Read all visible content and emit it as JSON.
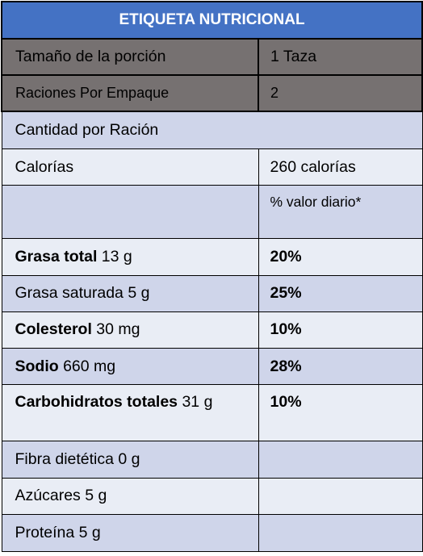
{
  "title": "ETIQUETA  NUTRICIONAL",
  "serving_size": {
    "label": "Tamaño de la porción",
    "value": "1 Taza"
  },
  "servings_per_container": {
    "label": "Raciones Por Empaque",
    "value": "2"
  },
  "amount_per_serving": "Cantidad por Ración",
  "calories": {
    "label": "Calorías",
    "value": "260 calorías"
  },
  "daily_value_header": "% valor diario*",
  "nutrients": [
    {
      "name": "Grasa total",
      "amount": " 13 g",
      "dv": "20%"
    },
    {
      "name": "Grasa saturada 5 g",
      "amount": "",
      "dv": "25%"
    },
    {
      "name": "Colesterol",
      "amount": " 30 mg",
      "dv": "10%"
    },
    {
      "name": "Sodio",
      "amount": " 660 mg",
      "dv": "28%"
    },
    {
      "name": "Carbohidratos  totales",
      "amount": " 31 g",
      "dv": "10%"
    },
    {
      "name": "Fibra dietética 0 g",
      "amount": "",
      "dv": ""
    },
    {
      "name": "Azúcares 5 g",
      "amount": "",
      "dv": ""
    },
    {
      "name": "Proteína 5 g",
      "amount": "",
      "dv": ""
    }
  ]
}
